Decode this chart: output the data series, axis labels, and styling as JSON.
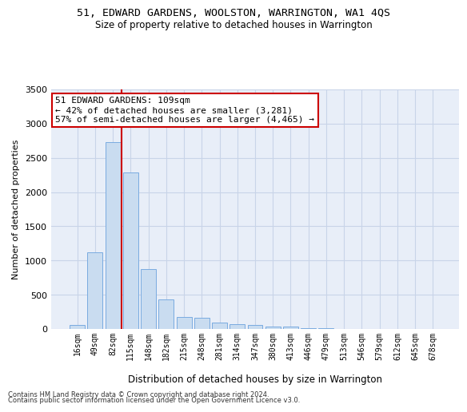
{
  "title": "51, EDWARD GARDENS, WOOLSTON, WARRINGTON, WA1 4QS",
  "subtitle": "Size of property relative to detached houses in Warrington",
  "xlabel": "Distribution of detached houses by size in Warrington",
  "ylabel": "Number of detached properties",
  "categories": [
    "16sqm",
    "49sqm",
    "82sqm",
    "115sqm",
    "148sqm",
    "182sqm",
    "215sqm",
    "248sqm",
    "281sqm",
    "314sqm",
    "347sqm",
    "380sqm",
    "413sqm",
    "446sqm",
    "479sqm",
    "513sqm",
    "546sqm",
    "579sqm",
    "612sqm",
    "645sqm",
    "678sqm"
  ],
  "values": [
    55,
    1120,
    2730,
    2290,
    870,
    430,
    175,
    165,
    90,
    65,
    55,
    30,
    30,
    15,
    15,
    0,
    0,
    0,
    0,
    0,
    0
  ],
  "bar_color": "#c9dcf0",
  "bar_edge_color": "#7aabe0",
  "grid_color": "#c8d4e8",
  "background_color": "#e8eef8",
  "vline_color": "#cc0000",
  "annotation_text": "51 EDWARD GARDENS: 109sqm\n← 42% of detached houses are smaller (3,281)\n57% of semi-detached houses are larger (4,465) →",
  "annotation_box_color": "#ffffff",
  "annotation_box_edge": "#cc0000",
  "ylim": [
    0,
    3500
  ],
  "yticks": [
    0,
    500,
    1000,
    1500,
    2000,
    2500,
    3000,
    3500
  ],
  "footer1": "Contains HM Land Registry data © Crown copyright and database right 2024.",
  "footer2": "Contains public sector information licensed under the Open Government Licence v3.0."
}
